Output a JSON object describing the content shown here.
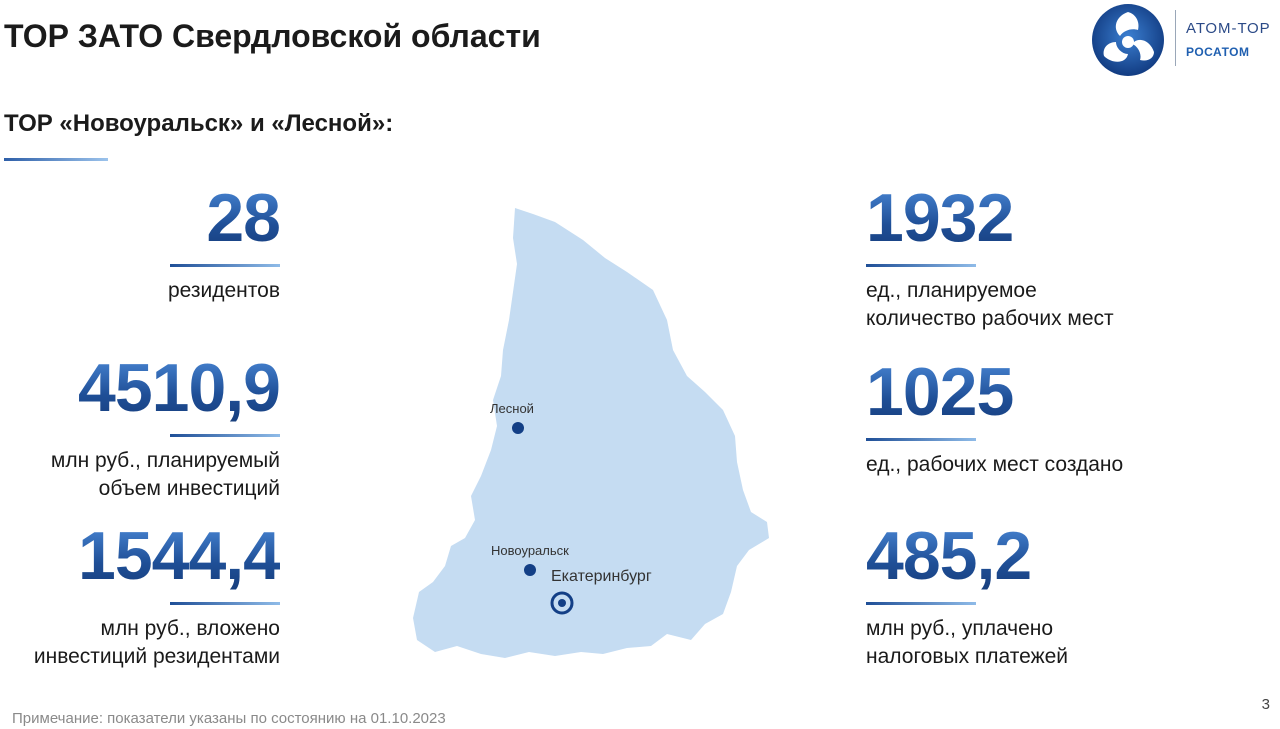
{
  "header": {
    "title": "ТОР ЗАТО Свердловской области",
    "subtitle": "ТОР «Новоуральск» и «Лесной»:"
  },
  "logo": {
    "name": "АТОМ-ТОР",
    "company": "РОСАТОМ",
    "icon": "rosatom-atom-logo-icon"
  },
  "stats_left": [
    {
      "value": "28",
      "label_lines": [
        "резидентов"
      ]
    },
    {
      "value": "4510,9",
      "label_lines": [
        "млн руб., планируемый",
        "объем инвестиций"
      ]
    },
    {
      "value": "1544,4",
      "label_lines": [
        "млн руб., вложено",
        "инвестиций резидентами"
      ]
    }
  ],
  "stats_right": [
    {
      "value": "1932",
      "label_lines": [
        "ед., планируемое",
        "количество рабочих мест"
      ]
    },
    {
      "value": "1025",
      "label_lines": [
        "ед., рабочих мест создано"
      ]
    },
    {
      "value": "485,2",
      "label_lines": [
        "млн руб., уплачено",
        "налоговых платежей"
      ]
    }
  ],
  "map": {
    "cities": [
      {
        "name": "Лесной",
        "marker": "dot"
      },
      {
        "name": "Новоуральск",
        "marker": "dot"
      },
      {
        "name": "Екатеринбург",
        "marker": "capital"
      }
    ],
    "colors": {
      "region": "#c5dcf2",
      "marker": "#133f86"
    }
  },
  "footer": {
    "note": "Примечание: показатели указаны по состоянию на 01.10.2023",
    "page": "3"
  },
  "colors": {
    "accent": "#1f4f97",
    "accent_light": "#8fbbe8"
  }
}
